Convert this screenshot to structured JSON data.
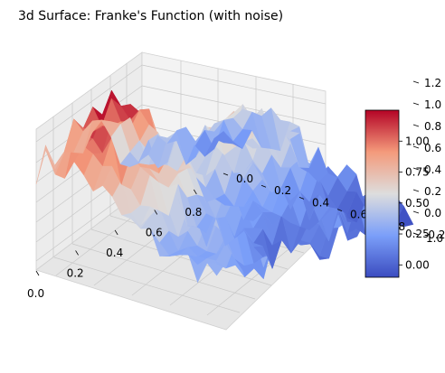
{
  "chart_data": {
    "type": "surface3d",
    "title": "3d Surface: Franke's Function (with noise)",
    "xlabel": "",
    "ylabel": "",
    "zlabel": "",
    "colormap": "coolwarm",
    "x_ticks": [
      "0.0",
      "0.2",
      "0.4",
      "0.6",
      "0.8"
    ],
    "y_ticks": [
      "0.0",
      "0.2",
      "0.4",
      "0.6",
      "0.8",
      "1.0"
    ],
    "z_ticks": [
      "-0.2",
      "0.0",
      "0.2",
      "0.4",
      "0.6",
      "0.8",
      "1.0",
      "1.2"
    ],
    "xlim": [
      0,
      0.95
    ],
    "ylim": [
      0,
      1.0
    ],
    "zlim": [
      -0.2,
      1.3
    ],
    "colorbar": {
      "ticks": [
        "0.00",
        "0.25",
        "0.50",
        "0.75",
        "1.00"
      ],
      "range": [
        -0.1,
        1.25
      ]
    },
    "grid": true
  }
}
